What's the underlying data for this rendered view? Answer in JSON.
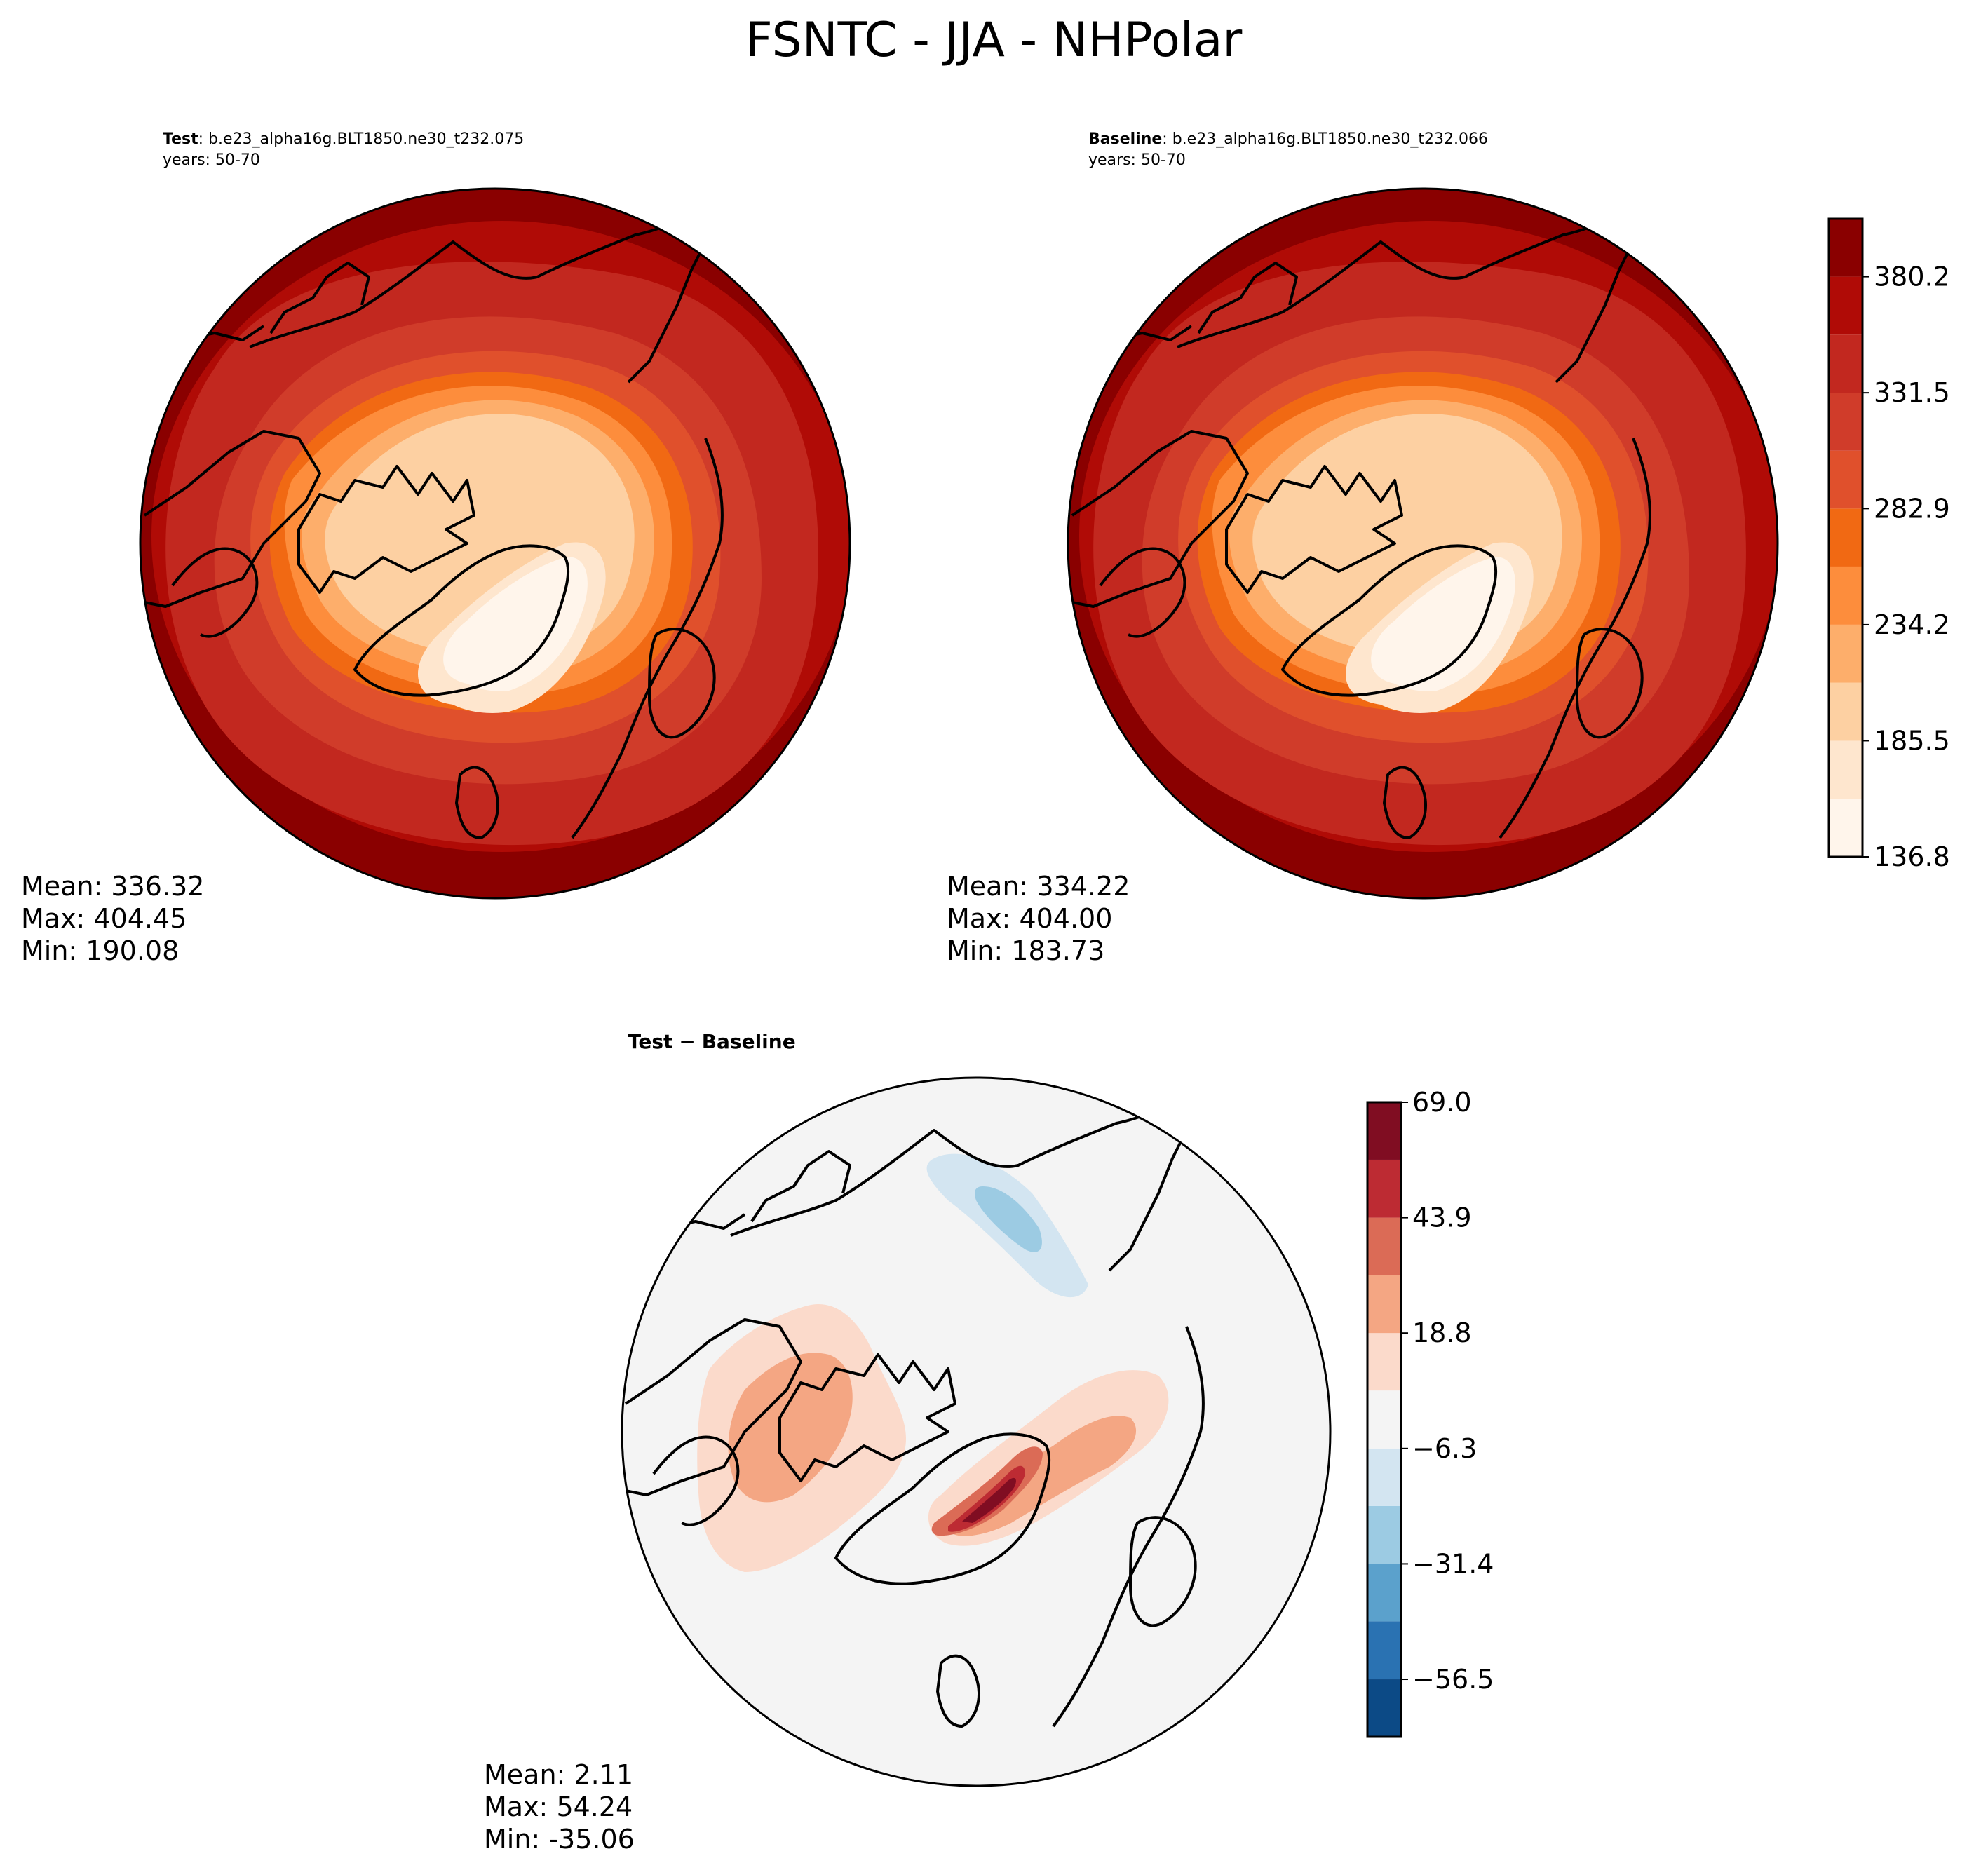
{
  "figure": {
    "title": "FSNTC - JJA - NHPolar"
  },
  "chart_data": [
    {
      "type": "heatmap",
      "projection": "north-polar-stereographic",
      "panel": "test",
      "title_bold": "Test",
      "title_text": ": b.e23_alpha16g.BLT1850.ne30_t232.075",
      "subtitle": "years: 50-70",
      "stats": {
        "mean": "Mean: 336.32",
        "max": "Max: 404.45",
        "min": "Min: 190.08"
      },
      "value_range": [
        136.8,
        404.45
      ]
    },
    {
      "type": "heatmap",
      "projection": "north-polar-stereographic",
      "panel": "baseline",
      "title_bold": "Baseline",
      "title_text": ": b.e23_alpha16g.BLT1850.ne30_t232.066",
      "subtitle": "years: 50-70",
      "stats": {
        "mean": "Mean: 334.22",
        "max": "Max: 404.00",
        "min": "Min: 183.73"
      },
      "value_range": [
        136.8,
        404.0
      ],
      "colorbar": {
        "levels": [
          136.8,
          161.2,
          185.5,
          209.9,
          234.2,
          258.6,
          282.9,
          307.2,
          331.5,
          355.9,
          380.2,
          404.5
        ],
        "tick_values": [
          136.8,
          185.5,
          234.2,
          282.9,
          331.5,
          380.2
        ],
        "tick_labels": [
          "136.8",
          "185.5",
          "234.2",
          "282.9",
          "331.5",
          "380.2"
        ],
        "colors": [
          "#fff5eb",
          "#fee6ce",
          "#fdd0a2",
          "#fdae6b",
          "#fd8d3c",
          "#f16913",
          "#e0502c",
          "#d03c2a",
          "#c2281f",
          "#b00b06",
          "#8a0000"
        ]
      }
    },
    {
      "type": "heatmap",
      "projection": "north-polar-stereographic",
      "panel": "difference",
      "title_bold": "Test",
      "title_op": " − ",
      "title_bold2": "Baseline",
      "stats": {
        "mean": "Mean:  2.11",
        "max": "Max: 54.24",
        "min": "Min: -35.06"
      },
      "value_range": [
        -35.06,
        54.24
      ],
      "colorbar": {
        "levels": [
          -69.0,
          -56.5,
          -43.9,
          -31.4,
          -18.8,
          -6.3,
          6.3,
          18.8,
          31.4,
          43.9,
          56.5,
          69.0
        ],
        "tick_values": [
          -56.5,
          -31.4,
          -6.3,
          18.8,
          43.9,
          69.0
        ],
        "tick_labels": [
          "−56.5",
          "−31.4",
          "−6.3",
          "18.8",
          "43.9",
          "69.0"
        ],
        "colors": [
          "#0c4a86",
          "#2a72b2",
          "#5ba1cc",
          "#9ccbe3",
          "#d3e5f1",
          "#f4f4f4",
          "#fbdacb",
          "#f4a683",
          "#db6b56",
          "#bd2b33",
          "#800d22"
        ]
      }
    }
  ]
}
